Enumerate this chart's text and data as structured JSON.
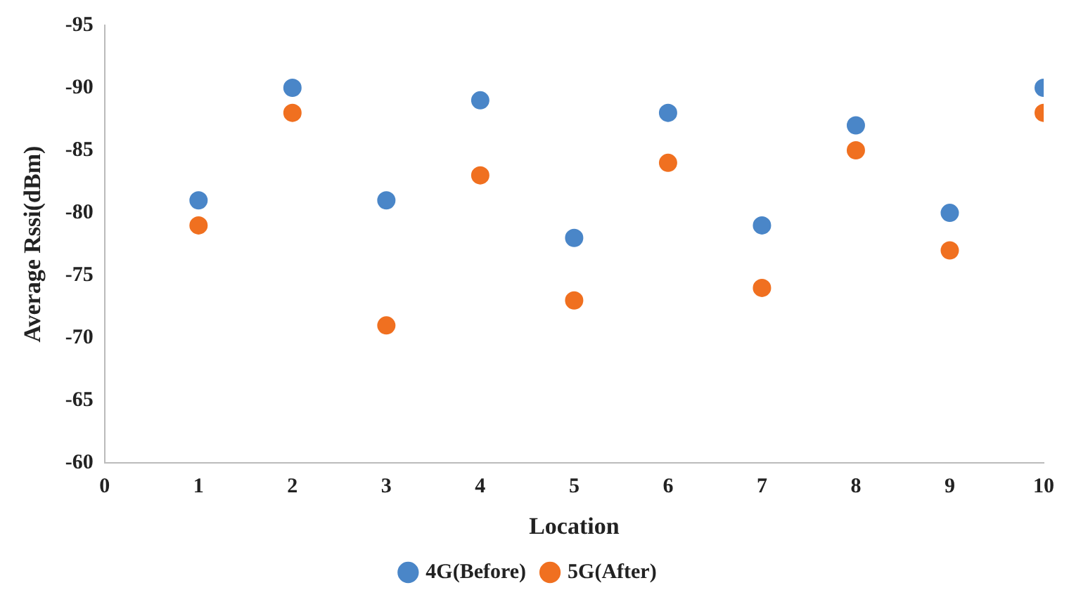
{
  "chart_data": {
    "type": "scatter",
    "xlabel": "Location",
    "ylabel": "Average Rssi(dBm)",
    "x": [
      1,
      2,
      3,
      4,
      5,
      6,
      7,
      8,
      9,
      10
    ],
    "series": [
      {
        "name": "4G(Before)",
        "color": "#4a86c8",
        "values": [
          -81,
          -90,
          -81,
          -89,
          -78,
          -88,
          -79,
          -87,
          -80,
          -90
        ]
      },
      {
        "name": "5G(After)",
        "color": "#f07020",
        "values": [
          -79,
          -88,
          -71,
          -83,
          -73,
          -84,
          -74,
          -85,
          -77,
          -88
        ]
      }
    ],
    "xlim": [
      0,
      10
    ],
    "xticks": [
      0,
      1,
      2,
      3,
      4,
      5,
      6,
      7,
      8,
      9,
      10
    ],
    "ylim": [
      -60,
      -95
    ],
    "yticks": [
      -60,
      -65,
      -70,
      -75,
      -80,
      -85,
      -90,
      -95
    ],
    "grid": false,
    "legend": "bottom",
    "marker": "circle"
  }
}
